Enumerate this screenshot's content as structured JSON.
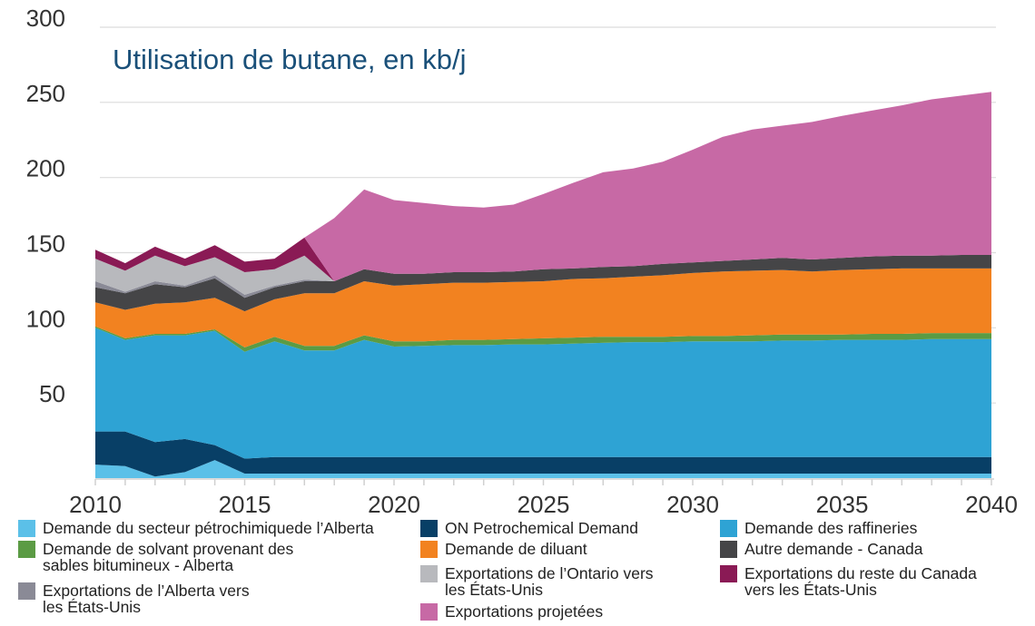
{
  "chart_data": {
    "type": "area",
    "stacked": true,
    "title": "Utilisation de butane, en kb/j",
    "xlabel": "",
    "ylabel": "",
    "xlim": [
      2010,
      2040
    ],
    "ylim": [
      0,
      300
    ],
    "x_ticks": [
      "2010",
      "2015",
      "2020",
      "2025",
      "2030",
      "2035",
      "2040"
    ],
    "y_ticks": [
      "50",
      "100",
      "150",
      "200",
      "250",
      "300"
    ],
    "grid": true,
    "legend_position": "bottom",
    "x": [
      2010,
      2011,
      2012,
      2013,
      2014,
      2015,
      2016,
      2017,
      2018,
      2019,
      2020,
      2021,
      2022,
      2023,
      2024,
      2025,
      2026,
      2027,
      2028,
      2029,
      2030,
      2031,
      2032,
      2033,
      2034,
      2035,
      2036,
      2037,
      2038,
      2039,
      2040
    ],
    "series": [
      {
        "name": "Demande du secteur pétrochimiquede l’Alberta",
        "color": "#5bc0e8",
        "values": [
          9,
          8,
          1,
          4,
          12,
          3,
          3,
          3,
          3,
          3,
          3,
          3,
          3,
          3,
          3,
          3,
          3,
          3,
          3,
          3,
          3,
          3,
          3,
          3,
          3,
          3,
          3,
          3,
          3,
          3,
          3
        ]
      },
      {
        "name": "ON Petrochemical Demand",
        "color": "#083f66",
        "values": [
          22,
          23,
          23,
          22,
          10,
          10,
          11,
          11,
          11,
          11,
          11,
          11,
          11,
          11,
          11,
          11,
          11,
          11,
          11,
          11,
          11,
          11,
          11,
          11,
          11,
          11,
          11,
          11,
          11,
          11,
          11
        ]
      },
      {
        "name": "Demande des raffineries",
        "color": "#2ea3d4",
        "values": [
          69,
          61,
          71,
          69,
          76,
          71,
          77,
          71,
          71,
          78,
          73.5,
          74,
          74.5,
          74.5,
          75,
          75,
          75.5,
          76,
          76.5,
          76.5,
          77,
          77,
          77,
          77.5,
          77.5,
          78,
          78,
          78,
          78.5,
          78.5,
          78.5
        ]
      },
      {
        "name": "Demande de solvant provenant des\nsables bitumineux - Alberta",
        "color": "#5b9b44",
        "values": [
          1,
          1,
          1,
          1,
          1,
          3,
          3,
          3,
          3,
          3,
          3.5,
          3,
          3.5,
          3.5,
          3.5,
          4,
          4,
          4,
          3.5,
          3.5,
          3.5,
          3.5,
          4,
          4,
          4,
          3.5,
          4,
          4,
          4,
          4,
          4
        ]
      },
      {
        "name": "Demande de diluant",
        "color": "#f28220",
        "values": [
          16,
          19,
          20,
          21,
          21,
          24,
          25,
          35,
          35,
          36,
          37,
          38,
          38,
          38,
          38,
          38,
          39,
          39,
          40,
          41,
          42,
          43,
          43,
          43,
          42,
          43,
          43,
          43.5,
          43,
          43,
          43
        ]
      },
      {
        "name": "Autre demande - Canada",
        "color": "#454547",
        "values": [
          10,
          11,
          13,
          10,
          13,
          9,
          8,
          8,
          8,
          8,
          8,
          7,
          7,
          7,
          7,
          8,
          7,
          7.5,
          7,
          7.5,
          7,
          7,
          7.5,
          8,
          8,
          8,
          8.5,
          8.5,
          8.5,
          9,
          9
        ]
      },
      {
        "name": "Exportations de l’Alberta vers\nles États-Unis",
        "color": "#8a8a96",
        "values": [
          4,
          1,
          2,
          1,
          2,
          2,
          1,
          1,
          0,
          0,
          0,
          0,
          0,
          0,
          0,
          0,
          0,
          0,
          0,
          0,
          0,
          0,
          0,
          0,
          0,
          0,
          0,
          0,
          0,
          0,
          0
        ]
      },
      {
        "name": "Exportations de l’Ontario vers\nles États-Unis",
        "color": "#b8b9bd",
        "values": [
          15,
          14,
          17,
          13,
          12,
          15,
          11,
          16,
          0,
          0,
          0,
          0,
          0,
          0,
          0,
          0,
          0,
          0,
          0,
          0,
          0,
          0,
          0,
          0,
          0,
          0,
          0,
          0,
          0,
          0,
          0
        ]
      },
      {
        "name": "Exportations du reste du Canada\nvers les États-Unis",
        "color": "#8a1a55",
        "values": [
          6,
          5,
          6,
          5,
          8,
          7,
          7,
          12,
          0,
          0,
          0,
          0,
          0,
          0,
          0,
          0,
          0,
          0,
          0,
          0,
          0,
          0,
          0,
          0,
          0,
          0,
          0,
          0,
          0,
          0,
          0
        ]
      },
      {
        "name": "Exportations projetées",
        "color": "#c769a5",
        "values": [
          0,
          0,
          0,
          0,
          0,
          0,
          0,
          0,
          42,
          53,
          49,
          47,
          44,
          43,
          44.5,
          50,
          57,
          63,
          65,
          68,
          75,
          82.5,
          86.5,
          88,
          91.5,
          94.5,
          97,
          100,
          104,
          106,
          108.5
        ]
      }
    ]
  }
}
